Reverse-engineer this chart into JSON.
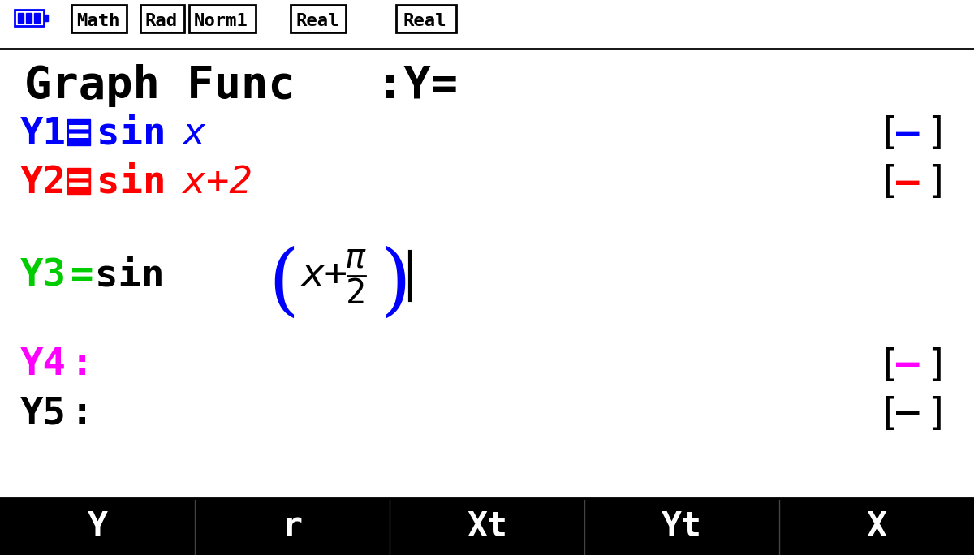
{
  "bg_color": "#ffffff",
  "header_bg": "#ffffff",
  "header_border_color": "#000000",
  "battery_color": "#0000ff",
  "status_items": [
    "Math",
    "Rad",
    "Norm1",
    "Real"
  ],
  "title_text": "Graph Func   :Y=",
  "lines": [
    {
      "label": "Y1",
      "label_color": "#0000ff",
      "eq_sign": "=",
      "has_box": true,
      "box_color": "#0000ff",
      "func": "sin",
      "var": " x",
      "var_italic": true,
      "color": "#0000ff",
      "show_bracket": false,
      "bracket_color": "#0000ff"
    },
    {
      "label": "Y2",
      "label_color": "#ff0000",
      "eq_sign": "=",
      "has_box": true,
      "box_color": "#ff0000",
      "func": "sin",
      "var": " x+2",
      "var_italic": true,
      "color": "#ff0000",
      "show_bracket": false,
      "bracket_color": "#ff0000"
    },
    {
      "label": "Y3",
      "label_color": "#00cc00",
      "eq_sign": "=",
      "has_box": false,
      "box_color": null,
      "func": "sin",
      "var": "",
      "var_italic": false,
      "color": "#000000",
      "show_bracket": true,
      "bracket_color": "#0000ff"
    },
    {
      "label": "Y4",
      "label_color": "#ff00ff",
      "eq_sign": ":",
      "has_box": false,
      "box_color": null,
      "func": "",
      "var": "",
      "var_italic": false,
      "color": "#ff00ff",
      "show_bracket": false,
      "bracket_color": null
    },
    {
      "label": "Y5",
      "label_color": "#000000",
      "eq_sign": ":",
      "has_box": false,
      "box_color": null,
      "func": "",
      "var": "",
      "var_italic": false,
      "color": "#000000",
      "show_bracket": false,
      "bracket_color": null
    }
  ],
  "legend_items": [
    {
      "color": "#0000ff",
      "visible": true
    },
    {
      "color": "#ff0000",
      "visible": true
    },
    {
      "color": null,
      "visible": false
    },
    {
      "color": "#ff00ff",
      "visible": true
    },
    {
      "color": "#000000",
      "visible": true
    }
  ],
  "footer_items": [
    "Y",
    "r",
    "Xt",
    "Yt",
    "X"
  ],
  "footer_bg": "#000000",
  "footer_text_color": "#ffffff"
}
